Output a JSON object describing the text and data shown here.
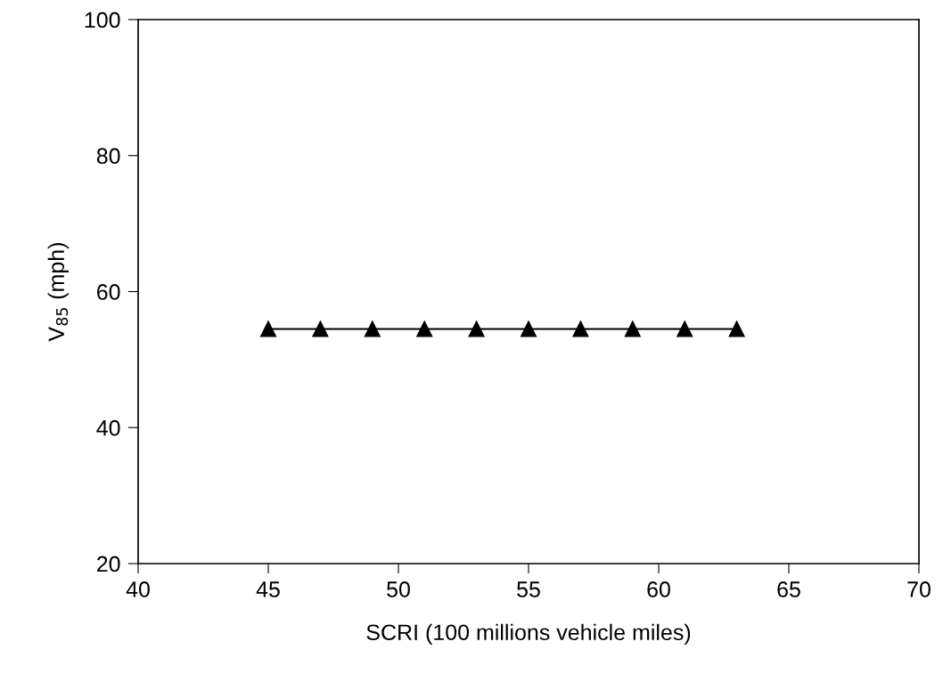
{
  "chart_data": {
    "type": "line",
    "xlabel": "SCRI (100 millions vehicle miles)",
    "ylabel": "V$_{85}$ (mph)",
    "x": [
      45,
      47,
      49,
      51,
      53,
      55,
      57,
      59,
      61,
      63
    ],
    "series": [
      {
        "color": "#000000",
        "values": [
          54.5,
          54.5,
          54.5,
          54.5,
          54.5,
          54.5,
          54.5,
          54.5,
          54.5,
          54.5
        ]
      }
    ],
    "xlim": [
      40,
      70
    ],
    "xticks": [
      40,
      45,
      50,
      55,
      60,
      65,
      70
    ],
    "ylim": [
      20,
      100
    ],
    "yticks": [
      20,
      40,
      60,
      80,
      100
    ],
    "marker": "triangle",
    "line_style": "solid"
  }
}
